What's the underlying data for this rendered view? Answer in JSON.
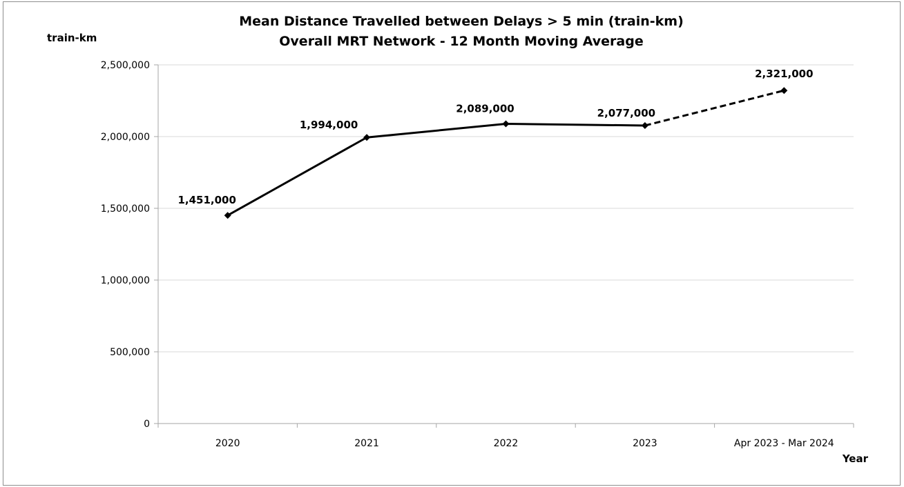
{
  "chart_data": {
    "type": "line",
    "title": "Mean Distance Travelled between Delays > 5 min (train-km)",
    "subtitle": "Overall MRT Network - 12 Month Moving Average",
    "ylabel": "train-km",
    "xlabel": "Year",
    "categories": [
      "2020",
      "2021",
      "2022",
      "2023",
      "Apr 2023 - Mar 2024"
    ],
    "values": [
      1451000,
      1994000,
      2089000,
      2077000,
      2321000
    ],
    "data_labels": [
      "1,451,000",
      "1,994,000",
      "2,089,000",
      "2,077,000",
      "2,321,000"
    ],
    "ylim": [
      0,
      2500000
    ],
    "yticks": [
      0,
      500000,
      1000000,
      1500000,
      2000000,
      2500000
    ],
    "ytick_labels": [
      "0",
      "500,000",
      "1,000,000",
      "1,500,000",
      "2,000,000",
      "2,500,000"
    ],
    "line_style": {
      "solid_segment": [
        "2020",
        "2023"
      ],
      "dashed_segment": [
        "2023",
        "Apr 2023 - Mar 2024"
      ]
    },
    "marker": "diamond",
    "grid": "horizontal",
    "legend": "none",
    "colors": {
      "line": "#000000",
      "grid": "#d9d9d9",
      "axis": "#a6a6a6",
      "border": "#8c8c8c"
    }
  }
}
